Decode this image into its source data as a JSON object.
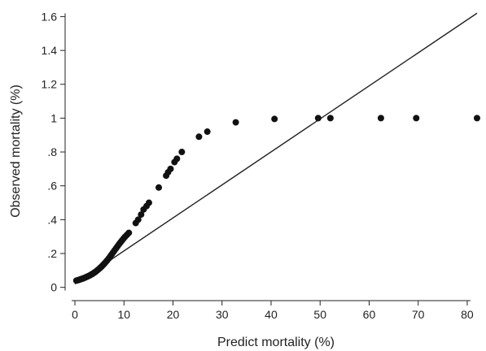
{
  "chart_data": {
    "type": "scatter",
    "xlabel": "Predict mortality (%)",
    "ylabel": "Observed mortality (%)",
    "xlim": [
      -1,
      83
    ],
    "ylim": [
      -0.04,
      1.65
    ],
    "grid": false,
    "x_ticks": [
      {
        "value": 0,
        "label": "0"
      },
      {
        "value": 10,
        "label": "10"
      },
      {
        "value": 20,
        "label": "20"
      },
      {
        "value": 30,
        "label": "30"
      },
      {
        "value": 40,
        "label": "40"
      },
      {
        "value": 50,
        "label": "50"
      },
      {
        "value": 60,
        "label": "60"
      },
      {
        "value": 70,
        "label": "70"
      },
      {
        "value": 80,
        "label": "80"
      }
    ],
    "y_ticks": [
      {
        "value": 0,
        "label": "0"
      },
      {
        "value": 0.2,
        "label": ".2"
      },
      {
        "value": 0.4,
        "label": ".4"
      },
      {
        "value": 0.6,
        "label": ".6"
      },
      {
        "value": 0.8,
        "label": ".8"
      },
      {
        "value": 1.0,
        "label": "1"
      },
      {
        "value": 1.2,
        "label": "1.2"
      },
      {
        "value": 1.4,
        "label": "1.4"
      },
      {
        "value": 1.6,
        "label": "1.6"
      }
    ],
    "reference_line": {
      "x": [
        0,
        82
      ],
      "y": [
        0.02,
        1.62
      ]
    },
    "points": [
      {
        "x": 0.3,
        "y": 0.04
      },
      {
        "x": 0.6,
        "y": 0.042
      },
      {
        "x": 0.9,
        "y": 0.045
      },
      {
        "x": 1.2,
        "y": 0.048
      },
      {
        "x": 1.5,
        "y": 0.051
      },
      {
        "x": 1.8,
        "y": 0.054
      },
      {
        "x": 2.1,
        "y": 0.058
      },
      {
        "x": 2.4,
        "y": 0.062
      },
      {
        "x": 2.7,
        "y": 0.066
      },
      {
        "x": 3.0,
        "y": 0.07
      },
      {
        "x": 3.3,
        "y": 0.075
      },
      {
        "x": 3.6,
        "y": 0.08
      },
      {
        "x": 3.9,
        "y": 0.086
      },
      {
        "x": 4.2,
        "y": 0.092
      },
      {
        "x": 4.5,
        "y": 0.099
      },
      {
        "x": 4.8,
        "y": 0.106
      },
      {
        "x": 5.1,
        "y": 0.114
      },
      {
        "x": 5.4,
        "y": 0.122
      },
      {
        "x": 5.7,
        "y": 0.131
      },
      {
        "x": 6.0,
        "y": 0.14
      },
      {
        "x": 6.3,
        "y": 0.15
      },
      {
        "x": 6.6,
        "y": 0.16
      },
      {
        "x": 6.9,
        "y": 0.171
      },
      {
        "x": 7.2,
        "y": 0.183
      },
      {
        "x": 7.5,
        "y": 0.195
      },
      {
        "x": 7.8,
        "y": 0.207
      },
      {
        "x": 8.1,
        "y": 0.219
      },
      {
        "x": 8.4,
        "y": 0.231
      },
      {
        "x": 8.7,
        "y": 0.243
      },
      {
        "x": 9.0,
        "y": 0.255
      },
      {
        "x": 9.3,
        "y": 0.266
      },
      {
        "x": 9.6,
        "y": 0.277
      },
      {
        "x": 9.9,
        "y": 0.288
      },
      {
        "x": 10.2,
        "y": 0.298
      },
      {
        "x": 10.6,
        "y": 0.31
      },
      {
        "x": 11.0,
        "y": 0.322
      },
      {
        "x": 12.4,
        "y": 0.38
      },
      {
        "x": 12.9,
        "y": 0.4
      },
      {
        "x": 13.5,
        "y": 0.43
      },
      {
        "x": 14.0,
        "y": 0.46
      },
      {
        "x": 14.6,
        "y": 0.48
      },
      {
        "x": 15.1,
        "y": 0.5
      },
      {
        "x": 17.1,
        "y": 0.59
      },
      {
        "x": 18.6,
        "y": 0.66
      },
      {
        "x": 19.0,
        "y": 0.68
      },
      {
        "x": 19.5,
        "y": 0.7
      },
      {
        "x": 20.3,
        "y": 0.74
      },
      {
        "x": 20.8,
        "y": 0.76
      },
      {
        "x": 21.8,
        "y": 0.8
      },
      {
        "x": 25.3,
        "y": 0.89
      },
      {
        "x": 27.0,
        "y": 0.92
      },
      {
        "x": 32.8,
        "y": 0.975
      },
      {
        "x": 40.7,
        "y": 0.995
      },
      {
        "x": 49.6,
        "y": 1.0
      },
      {
        "x": 52.1,
        "y": 1.0
      },
      {
        "x": 62.4,
        "y": 1.0
      },
      {
        "x": 69.6,
        "y": 1.0
      },
      {
        "x": 82.0,
        "y": 1.0
      }
    ]
  }
}
